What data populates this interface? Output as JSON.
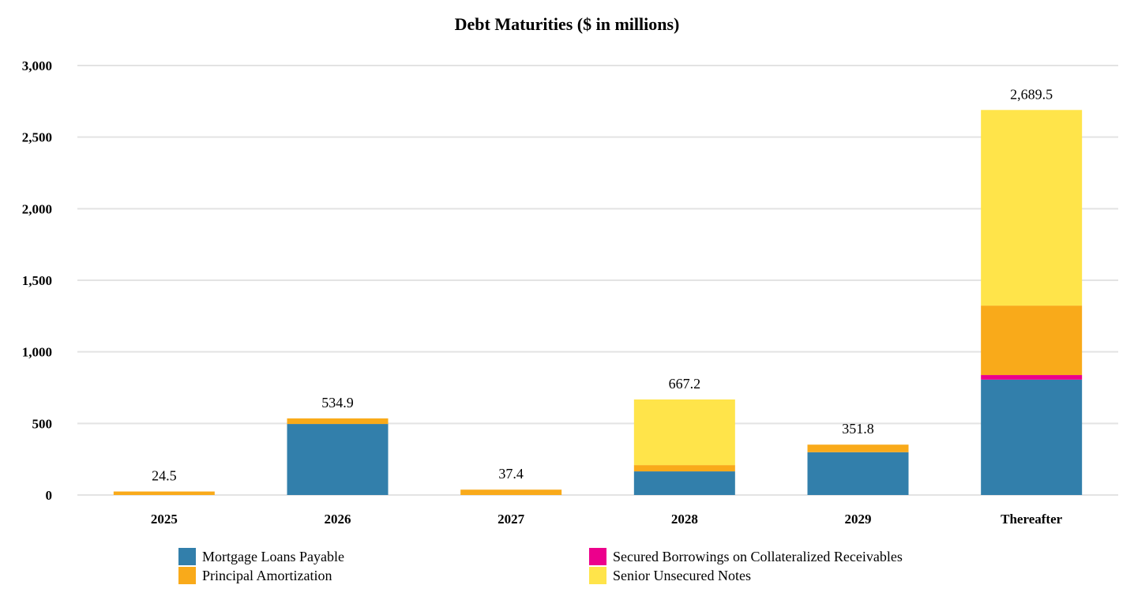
{
  "chart_data": {
    "type": "bar",
    "stacked": true,
    "title": "Debt Maturities ($ in millions)",
    "xlabel": "",
    "ylabel": "",
    "ylim": [
      0,
      3000
    ],
    "yticks": [
      0,
      500,
      1000,
      1500,
      2000,
      2500,
      3000
    ],
    "ytick_labels": [
      "0",
      "500",
      "1,000",
      "1,500",
      "2,000",
      "2,500",
      "3,000"
    ],
    "grid": true,
    "legend_position": "bottom",
    "categories": [
      "2025",
      "2026",
      "2027",
      "2028",
      "2029",
      "Thereafter"
    ],
    "series": [
      {
        "name": "Mortgage Loans Payable",
        "color": "#327FAB",
        "values": [
          0,
          496,
          0,
          165,
          299,
          806
        ]
      },
      {
        "name": "Secured Borrowings on Collateralized Receivables",
        "color": "#EC008C",
        "values": [
          0,
          0,
          0,
          0,
          0,
          32
        ]
      },
      {
        "name": "Principal Amortization",
        "color": "#F9AA1A",
        "values": [
          24.5,
          38.9,
          37.4,
          44,
          52.8,
          485
        ]
      },
      {
        "name": "Senior Unsecured Notes",
        "color": "#FFE44A",
        "values": [
          0,
          0,
          0,
          458.2,
          0,
          1366.5
        ]
      }
    ],
    "totals": [
      24.5,
      534.9,
      37.4,
      667.2,
      351.8,
      2689.5
    ],
    "total_labels": [
      "24.5",
      "534.9",
      "37.4",
      "667.2",
      "351.8",
      "2,689.5"
    ]
  }
}
